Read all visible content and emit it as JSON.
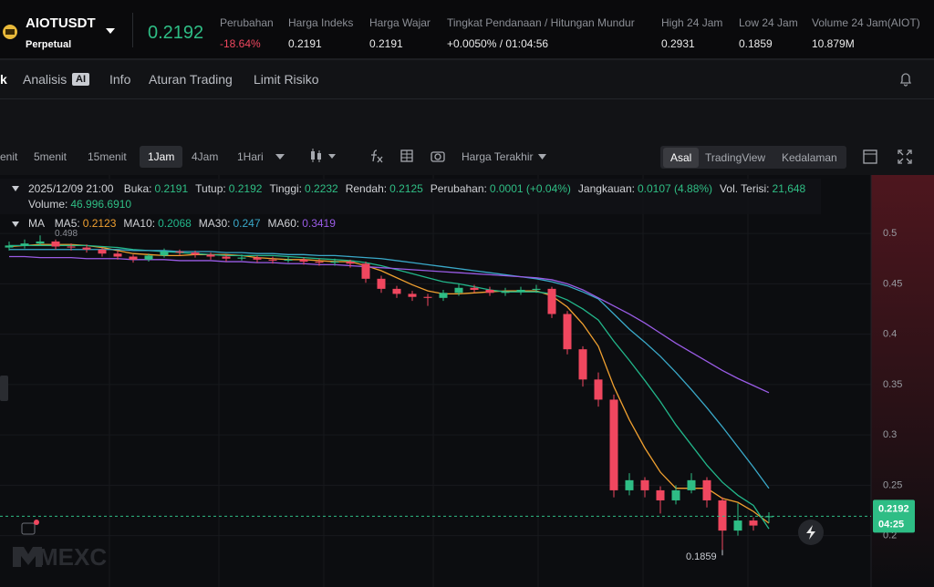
{
  "header": {
    "symbol": "AIOTUSDT",
    "contract_type": "Perpetual",
    "price": "0.2192",
    "stats": [
      {
        "label": "Perubahan",
        "value": "-18.64%"
      },
      {
        "label": "Harga Indeks",
        "value": "0.2191"
      },
      {
        "label": "Harga Wajar",
        "value": "0.2191"
      },
      {
        "label": "Tingkat Pendanaan / Hitungan Mundur",
        "value": "+0.0050% / 01:04:56"
      },
      {
        "label": "High 24 Jam",
        "value": "0.2931"
      },
      {
        "label": "Low 24 Jam",
        "value": "0.1859"
      },
      {
        "label": "Volume 24 Jam(AIOT)",
        "value": "10.879M"
      }
    ]
  },
  "tabs": [
    "k",
    "Analisis",
    "AI",
    "Info",
    "Aturan Trading",
    "Limit Risiko"
  ],
  "toolbar": {
    "intervals": [
      "enit",
      "5menit",
      "15menit",
      "1Jam",
      "4Jam",
      "1Hari"
    ],
    "price_type": "Harga Terakhir",
    "views": [
      "Asal",
      "TradingView",
      "Kedalaman"
    ]
  },
  "chart_data": {
    "type": "candlestick",
    "info": {
      "time": "2025/12/09 21:00",
      "fields": [
        {
          "label": "Buka:",
          "value": "0.2191"
        },
        {
          "label": "Tutup:",
          "value": "0.2192"
        },
        {
          "label": "Tinggi:",
          "value": "0.2232"
        },
        {
          "label": "Rendah:",
          "value": "0.2125"
        },
        {
          "label": "Perubahan:",
          "value": "0.0001 (+0.04%)"
        },
        {
          "label": "Jangkauan:",
          "value": "0.0107 (4.88%)"
        },
        {
          "label": "Vol. Terisi:",
          "value": "21,648"
        }
      ],
      "volume": {
        "label": "Volume:",
        "value": "46.996.6910"
      }
    },
    "legend_title": "MA",
    "up_color": "#2ebd85",
    "down_color": "#f0475f",
    "open": [
      0.486,
      0.488,
      0.49,
      0.492,
      0.487,
      0.486,
      0.484,
      0.48,
      0.477,
      0.474,
      0.478,
      0.482,
      0.481,
      0.479,
      0.477,
      0.475,
      0.476,
      0.474,
      0.473,
      0.474,
      0.472,
      0.471,
      0.472,
      0.47,
      0.455,
      0.445,
      0.44,
      0.437,
      0.436,
      0.441,
      0.446,
      0.444,
      0.441,
      0.442,
      0.444,
      0.445,
      0.42,
      0.385,
      0.355,
      0.335,
      0.245,
      0.255,
      0.245,
      0.235,
      0.245,
      0.255,
      0.235,
      0.205,
      0.215,
      0.2191
    ],
    "high": [
      0.492,
      0.494,
      0.498,
      0.494,
      0.49,
      0.489,
      0.486,
      0.483,
      0.479,
      0.48,
      0.485,
      0.484,
      0.483,
      0.481,
      0.479,
      0.479,
      0.478,
      0.477,
      0.477,
      0.476,
      0.475,
      0.475,
      0.474,
      0.472,
      0.458,
      0.448,
      0.443,
      0.44,
      0.444,
      0.45,
      0.449,
      0.447,
      0.446,
      0.447,
      0.449,
      0.447,
      0.423,
      0.388,
      0.362,
      0.34,
      0.262,
      0.258,
      0.249,
      0.25,
      0.262,
      0.258,
      0.238,
      0.232,
      0.218,
      0.2232
    ],
    "low": [
      0.483,
      0.485,
      0.488,
      0.484,
      0.483,
      0.481,
      0.477,
      0.474,
      0.471,
      0.472,
      0.476,
      0.478,
      0.476,
      0.474,
      0.472,
      0.473,
      0.471,
      0.47,
      0.471,
      0.469,
      0.468,
      0.468,
      0.466,
      0.451,
      0.441,
      0.436,
      0.433,
      0.428,
      0.433,
      0.438,
      0.441,
      0.438,
      0.438,
      0.439,
      0.441,
      0.416,
      0.38,
      0.348,
      0.328,
      0.238,
      0.24,
      0.238,
      0.222,
      0.231,
      0.242,
      0.228,
      0.1859,
      0.2,
      0.205,
      0.2125
    ],
    "close": [
      0.488,
      0.49,
      0.492,
      0.487,
      0.486,
      0.484,
      0.48,
      0.477,
      0.474,
      0.478,
      0.482,
      0.481,
      0.479,
      0.477,
      0.475,
      0.476,
      0.474,
      0.473,
      0.474,
      0.472,
      0.471,
      0.472,
      0.47,
      0.455,
      0.445,
      0.44,
      0.437,
      0.436,
      0.441,
      0.446,
      0.444,
      0.441,
      0.442,
      0.444,
      0.445,
      0.42,
      0.385,
      0.355,
      0.335,
      0.245,
      0.255,
      0.245,
      0.235,
      0.245,
      0.255,
      0.235,
      0.205,
      0.215,
      0.21,
      0.2192
    ],
    "series": [
      {
        "name": "MA5:",
        "color": "#f0a030",
        "values": [
          0.487,
          0.488,
          0.489,
          0.489,
          0.489,
          0.488,
          0.486,
          0.483,
          0.48,
          0.479,
          0.478,
          0.478,
          0.479,
          0.479,
          0.479,
          0.478,
          0.476,
          0.475,
          0.474,
          0.474,
          0.473,
          0.472,
          0.472,
          0.468,
          0.463,
          0.456,
          0.449,
          0.443,
          0.44,
          0.44,
          0.441,
          0.442,
          0.443,
          0.443,
          0.443,
          0.438,
          0.427,
          0.41,
          0.388,
          0.348,
          0.315,
          0.287,
          0.263,
          0.247,
          0.247,
          0.247,
          0.237,
          0.233,
          0.224,
          0.2123
        ]
      },
      {
        "name": "MA10:",
        "color": "#22b68a",
        "values": [
          0.488,
          0.488,
          0.488,
          0.488,
          0.488,
          0.488,
          0.487,
          0.486,
          0.484,
          0.483,
          0.482,
          0.481,
          0.48,
          0.479,
          0.478,
          0.478,
          0.478,
          0.478,
          0.477,
          0.476,
          0.475,
          0.474,
          0.473,
          0.471,
          0.468,
          0.464,
          0.46,
          0.456,
          0.452,
          0.45,
          0.447,
          0.444,
          0.442,
          0.442,
          0.442,
          0.44,
          0.434,
          0.425,
          0.414,
          0.393,
          0.374,
          0.354,
          0.333,
          0.31,
          0.29,
          0.27,
          0.253,
          0.24,
          0.23,
          0.2068
        ]
      },
      {
        "name": "MA30:",
        "color": "#3aa9c9",
        "values": [
          0.484,
          0.484,
          0.484,
          0.484,
          0.484,
          0.484,
          0.484,
          0.484,
          0.483,
          0.483,
          0.483,
          0.482,
          0.482,
          0.482,
          0.481,
          0.481,
          0.48,
          0.48,
          0.479,
          0.479,
          0.478,
          0.478,
          0.477,
          0.476,
          0.475,
          0.473,
          0.471,
          0.469,
          0.467,
          0.465,
          0.463,
          0.461,
          0.459,
          0.457,
          0.455,
          0.452,
          0.448,
          0.442,
          0.435,
          0.42,
          0.405,
          0.392,
          0.378,
          0.362,
          0.345,
          0.327,
          0.308,
          0.288,
          0.268,
          0.247
        ]
      },
      {
        "name": "MA60:",
        "color": "#9a5ce6",
        "values": [
          0.477,
          0.477,
          0.476,
          0.476,
          0.476,
          0.475,
          0.475,
          0.475,
          0.474,
          0.474,
          0.474,
          0.473,
          0.473,
          0.473,
          0.472,
          0.472,
          0.471,
          0.471,
          0.47,
          0.47,
          0.469,
          0.469,
          0.468,
          0.467,
          0.466,
          0.465,
          0.464,
          0.463,
          0.462,
          0.461,
          0.46,
          0.459,
          0.458,
          0.457,
          0.456,
          0.454,
          0.45,
          0.444,
          0.436,
          0.428,
          0.42,
          0.411,
          0.401,
          0.391,
          0.382,
          0.373,
          0.364,
          0.356,
          0.349,
          0.3419
        ]
      }
    ],
    "ylim": [
      0.149,
      0.558
    ],
    "yticks": [
      0.2,
      0.25,
      0.3,
      0.35,
      0.4,
      0.45,
      0.5
    ],
    "grid": true,
    "last_price": 0.2192,
    "countdown": "04:25",
    "watermark": "MEXC"
  }
}
